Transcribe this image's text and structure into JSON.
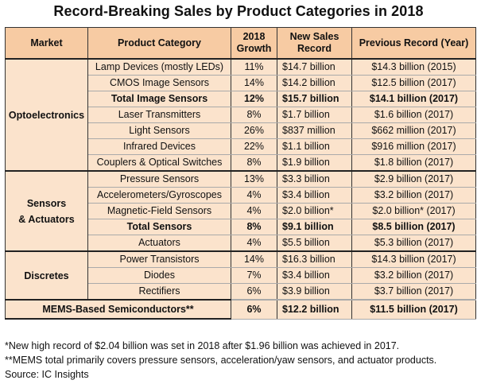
{
  "title": "Record-Breaking Sales by Product Categories in 2018",
  "chart_data": {
    "type": "table",
    "columns": [
      "Market",
      "Product Category",
      "2018 Growth",
      "New Sales Record",
      "Previous Record (Year)"
    ],
    "groups": [
      {
        "market": "Optoelectronics",
        "rows": [
          {
            "category": "Lamp Devices (mostly LEDs)",
            "growth": "11%",
            "record": "$14.7 billion",
            "previous": "$14.3 billion (2015)",
            "bold": false
          },
          {
            "category": "CMOS Image Sensors",
            "growth": "14%",
            "record": "$14.2 billion",
            "previous": "$12.5 billion (2017)",
            "bold": false
          },
          {
            "category": "Total Image Sensors",
            "growth": "12%",
            "record": "$15.7 billion",
            "previous": "$14.1 billion (2017)",
            "bold": true
          },
          {
            "category": "Laser Transmitters",
            "growth": "8%",
            "record": "$1.7 billion",
            "previous": "$1.6 billion (2017)",
            "bold": false
          },
          {
            "category": "Light Sensors",
            "growth": "26%",
            "record": "$837 million",
            "previous": "$662 million (2017)",
            "bold": false
          },
          {
            "category": "Infrared Devices",
            "growth": "22%",
            "record": "$1.1 billion",
            "previous": "$916 million (2017)",
            "bold": false
          },
          {
            "category": "Couplers & Optical Switches",
            "growth": "8%",
            "record": "$1.9 billion",
            "previous": "$1.8 billion (2017)",
            "bold": false
          }
        ]
      },
      {
        "market": "Sensors & Actuators",
        "market_lines": [
          "Sensors",
          "& Actuators"
        ],
        "rows": [
          {
            "category": "Pressure Sensors",
            "growth": "13%",
            "record": "$3.3 billion",
            "previous": "$2.9 billion (2017)",
            "bold": false
          },
          {
            "category": "Accelerometers/Gyroscopes",
            "growth": "4%",
            "record": "$3.4 billion",
            "previous": "$3.2 billion (2017)",
            "bold": false
          },
          {
            "category": "Magnetic-Field Sensors",
            "growth": "4%",
            "record": "$2.0 billion*",
            "previous": "$2.0 billion* (2017)",
            "bold": false
          },
          {
            "category": "Total Sensors",
            "growth": "8%",
            "record": "$9.1 billion",
            "previous": "$8.5 billion (2017)",
            "bold": true
          },
          {
            "category": "Actuators",
            "growth": "4%",
            "record": "$5.5 billion",
            "previous": "$5.3 billion (2017)",
            "bold": false
          }
        ]
      },
      {
        "market": "Discretes",
        "rows": [
          {
            "category": "Power Transistors",
            "growth": "14%",
            "record": "$16.3 billion",
            "previous": "$14.3 billion (2017)",
            "bold": false
          },
          {
            "category": "Diodes",
            "growth": "7%",
            "record": "$3.4 billion",
            "previous": "$3.2 billion (2017)",
            "bold": false
          },
          {
            "category": "Rectifiers",
            "growth": "6%",
            "record": "$3.9 billion",
            "previous": "$3.7 billion (2017)",
            "bold": false
          }
        ]
      }
    ],
    "summary_row": {
      "label": "MEMS-Based Semiconductors**",
      "growth": "6%",
      "record": "$12.2 billion",
      "previous": "$11.5 billion (2017)"
    }
  },
  "footnotes": [
    "*New high record of $2.04 billion was set in 2018 after $1.96 billion was achieved in 2017.",
    "**MEMS total primarily covers pressure sensors, acceleration/yaw sensors, and actuator products."
  ],
  "source": "Source: IC Insights",
  "colors": {
    "header_bg": "#f7cba3",
    "body_bg": "#fbe3cc",
    "border": "#333333"
  }
}
